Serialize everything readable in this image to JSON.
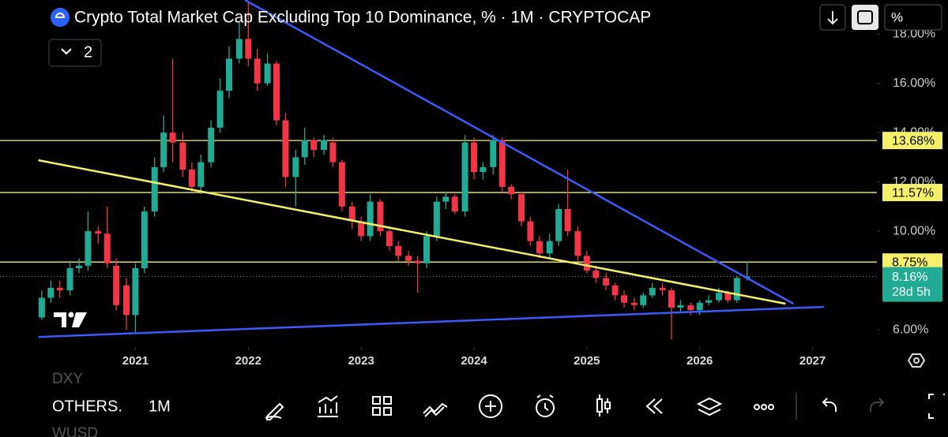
{
  "chart_data": {
    "type": "candlestick",
    "title": "Crypto Total Market Cap Excluding Top 10 Dominance, % · 1M · CRYPTOCAP",
    "indicator_count": "2",
    "scale_button": "%",
    "xlim": [
      2019.8,
      2027.57
    ],
    "ylim": [
      5.3,
      19.38
    ],
    "xticks": [
      2021,
      2022,
      2023,
      2024,
      2025,
      2026,
      2027
    ],
    "yticks": [
      {
        "value": 6,
        "label": "6.00%"
      },
      {
        "value": 10,
        "label": "10.00%"
      },
      {
        "value": 12,
        "label": "12.00%"
      },
      {
        "value": 14,
        "label": "14.00%"
      },
      {
        "value": 16,
        "label": "16.00%"
      },
      {
        "value": 18,
        "label": "18.00%"
      }
    ],
    "up_color": "#22ab94",
    "down_color": "#f23645",
    "x": [
      2020.17,
      2020.25,
      2020.33,
      2020.42,
      2020.5,
      2020.58,
      2020.67,
      2020.75,
      2020.83,
      2020.92,
      2021,
      2021.08,
      2021.17,
      2021.25,
      2021.33,
      2021.42,
      2021.5,
      2021.58,
      2021.67,
      2021.75,
      2021.83,
      2021.92,
      2022,
      2022.08,
      2022.17,
      2022.25,
      2022.33,
      2022.42,
      2022.5,
      2022.58,
      2022.67,
      2022.75,
      2022.83,
      2022.92,
      2023,
      2023.08,
      2023.17,
      2023.25,
      2023.33,
      2023.42,
      2023.5,
      2023.58,
      2023.67,
      2023.75,
      2023.83,
      2023.92,
      2024,
      2024.08,
      2024.17,
      2024.25,
      2024.33,
      2024.42,
      2024.5,
      2024.58,
      2024.67,
      2024.75,
      2024.83,
      2024.92,
      2025,
      2025.08,
      2025.17,
      2025.25,
      2025.33,
      2025.42,
      2025.5,
      2025.58,
      2025.67,
      2025.75,
      2025.83,
      2025.92,
      2026,
      2026.08,
      2026.17,
      2026.25,
      2026.33,
      2026.42
    ],
    "open": [
      6.5,
      7.3,
      7.7,
      7.6,
      8.5,
      8.6,
      10.0,
      9.9,
      8.6,
      7.8,
      6.6,
      8.5,
      10.8,
      12.6,
      14.0,
      13.6,
      12.5,
      11.8,
      12.8,
      14.2,
      15.7,
      17.0,
      17.8,
      17.0,
      16.0,
      16.8,
      14.5,
      12.2,
      13.0,
      13.7,
      13.3,
      13.6,
      12.8,
      11.0,
      10.4,
      9.8,
      11.2,
      10.0,
      9.4,
      9.0,
      8.8,
      8.7,
      9.8,
      11.2,
      11.4,
      10.8,
      13.6,
      12.4,
      12.6,
      13.7,
      11.8,
      11.5,
      10.4,
      9.6,
      9.1,
      9.6,
      10.9,
      10.0,
      9.0,
      8.4,
      8.1,
      7.8,
      7.4,
      7.1,
      7.0,
      7.4,
      7.7,
      7.6,
      6.9,
      7.0,
      6.8,
      7.1,
      7.2,
      7.5,
      7.2,
      8.1
    ],
    "high": [
      7.6,
      8.0,
      8.0,
      8.8,
      8.9,
      10.8,
      10.2,
      11.0,
      8.9,
      8.1,
      8.7,
      11.0,
      13.0,
      14.7,
      17.0,
      14.0,
      12.8,
      13.1,
      14.5,
      16.2,
      17.5,
      18.5,
      19.3,
      17.4,
      17.2,
      16.9,
      14.8,
      13.3,
      14.2,
      13.8,
      13.9,
      13.8,
      12.9,
      11.2,
      10.6,
      11.5,
      11.3,
      10.2,
      9.6,
      9.2,
      9.0,
      10.0,
      11.4,
      11.6,
      11.5,
      13.9,
      13.8,
      12.8,
      13.9,
      13.8,
      11.9,
      11.6,
      10.6,
      9.8,
      9.9,
      11.1,
      12.5,
      10.2,
      9.2,
      8.6,
      8.3,
      7.9,
      7.6,
      7.3,
      7.5,
      7.9,
      7.9,
      7.7,
      7.2,
      7.1,
      7.2,
      7.4,
      7.7,
      7.6,
      8.2,
      8.75
    ],
    "low": [
      6.4,
      7.1,
      7.3,
      7.4,
      8.3,
      8.4,
      9.5,
      8.5,
      6.8,
      6.0,
      5.9,
      8.3,
      10.6,
      12.4,
      12.8,
      12.2,
      11.6,
      11.5,
      12.6,
      14.0,
      15.4,
      16.8,
      16.7,
      15.7,
      15.9,
      14.3,
      11.8,
      11.0,
      12.7,
      13.0,
      13.1,
      12.6,
      10.8,
      10.1,
      9.6,
      9.6,
      9.8,
      9.2,
      8.8,
      8.6,
      7.5,
      8.5,
      9.6,
      10.9,
      10.7,
      10.6,
      12.1,
      12.1,
      12.3,
      11.6,
      11.3,
      10.2,
      9.4,
      8.9,
      8.9,
      9.4,
      9.8,
      8.8,
      8.3,
      7.9,
      7.6,
      7.2,
      6.9,
      6.8,
      6.9,
      7.3,
      7.4,
      5.6,
      6.7,
      6.6,
      6.6,
      7.0,
      7.1,
      7.1,
      7.1,
      8.0
    ],
    "close": [
      7.3,
      7.7,
      7.6,
      8.5,
      8.6,
      10.0,
      9.9,
      8.7,
      7.0,
      6.6,
      8.5,
      10.8,
      12.6,
      14.0,
      13.6,
      12.5,
      11.8,
      12.8,
      14.2,
      15.7,
      17.0,
      17.8,
      17.0,
      16.0,
      16.8,
      14.5,
      12.2,
      13.0,
      13.7,
      13.3,
      13.7,
      12.8,
      11.0,
      10.4,
      9.8,
      11.2,
      10.0,
      9.4,
      9.0,
      8.8,
      8.7,
      9.8,
      11.2,
      11.4,
      10.8,
      13.6,
      12.4,
      12.6,
      13.7,
      11.8,
      11.5,
      10.4,
      9.6,
      9.1,
      9.6,
      10.9,
      10.0,
      9.0,
      8.4,
      8.1,
      7.8,
      7.4,
      7.1,
      7.0,
      7.4,
      7.7,
      7.6,
      6.9,
      7.0,
      6.8,
      7.1,
      7.2,
      7.5,
      7.2,
      8.1,
      8.16
    ],
    "levels": [
      {
        "value": 13.68,
        "label": "13.68%"
      },
      {
        "value": 11.57,
        "label": "11.57%"
      },
      {
        "value": 8.75,
        "label": "8.75%"
      }
    ],
    "level_color": "#f5f06a",
    "trendlines": [
      {
        "color": "#3d5afe",
        "x": [
          2021.97,
          2026.83
        ],
        "y": [
          19.38,
          7.06
        ]
      },
      {
        "color": "#f5f06a",
        "x": [
          2020.14,
          2026.76
        ],
        "y": [
          12.88,
          7.06
        ]
      },
      {
        "color": "#3d5afe",
        "x": [
          2020.14,
          2027.1
        ],
        "y": [
          5.71,
          6.93
        ]
      }
    ],
    "last_price": {
      "value": 8.16,
      "label": "8.16%",
      "countdown": "28d 5h"
    }
  },
  "toolbar": {
    "symbols": [
      "DXY",
      "OTHERS.",
      "WUSD"
    ],
    "interval": "1M"
  }
}
